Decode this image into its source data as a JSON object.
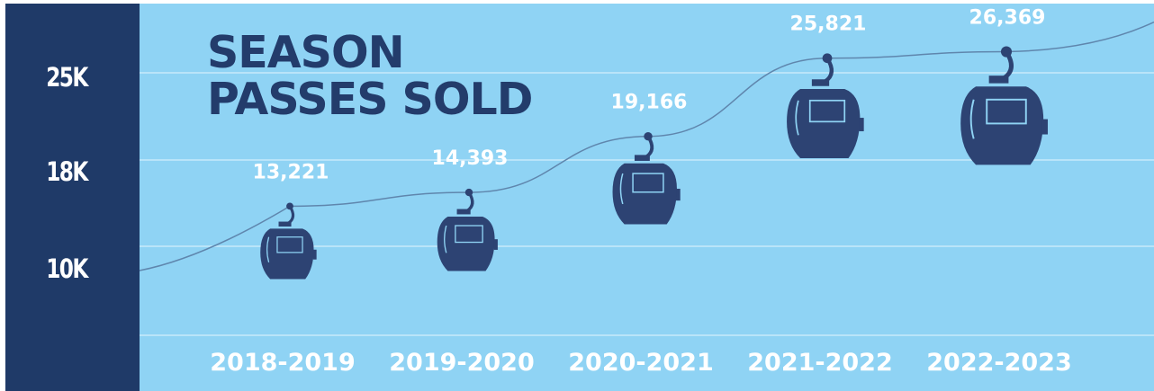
{
  "chart_data": {
    "type": "line",
    "title_lines": [
      "SEASON",
      "PASSES SOLD"
    ],
    "categories": [
      "2018-2019",
      "2019-2020",
      "2020-2021",
      "2021-2022",
      "2022-2023"
    ],
    "values": [
      13221,
      14393,
      19166,
      25821,
      26369
    ],
    "value_labels": [
      "13,221",
      "14,393",
      "19,166",
      "25,821",
      "26,369"
    ],
    "y_ticks": [
      {
        "value": 10000,
        "label": "10K"
      },
      {
        "value": 18000,
        "label": "18K"
      },
      {
        "value": 25000,
        "label": "25K"
      }
    ],
    "grid": true,
    "xlabel": "",
    "ylabel": ""
  },
  "colors": {
    "background": "#8fd3f4",
    "axis_band": "#1f3a68",
    "gondola": "#2d4373",
    "cable": "#5f86ad",
    "gridline": "#b9e4f9",
    "label_text": "#ffffff",
    "title_text": "#233c6b"
  },
  "icons": {
    "marker": "gondola-lift-icon"
  }
}
